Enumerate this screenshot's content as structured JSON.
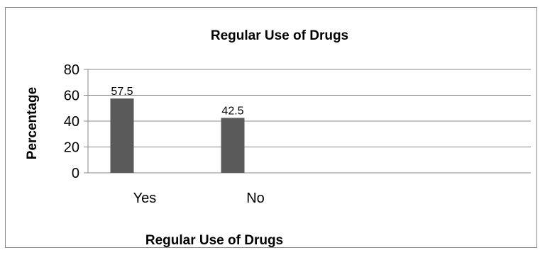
{
  "chart_data": {
    "type": "bar",
    "title": "Regular Use of Drugs",
    "xlabel": "Regular Use of Drugs",
    "ylabel": "Percentage",
    "categories": [
      "Yes",
      "No"
    ],
    "values": [
      57.5,
      42.5
    ],
    "data_labels": [
      "57.5",
      "42.5"
    ],
    "ylim": [
      0,
      80
    ],
    "yticks": [
      0,
      20,
      40,
      60,
      80
    ],
    "ytick_labels": [
      "0",
      "20",
      "40",
      "60",
      "80"
    ],
    "grid": true,
    "legend": "none",
    "bar_color": "#5a5a5a"
  }
}
